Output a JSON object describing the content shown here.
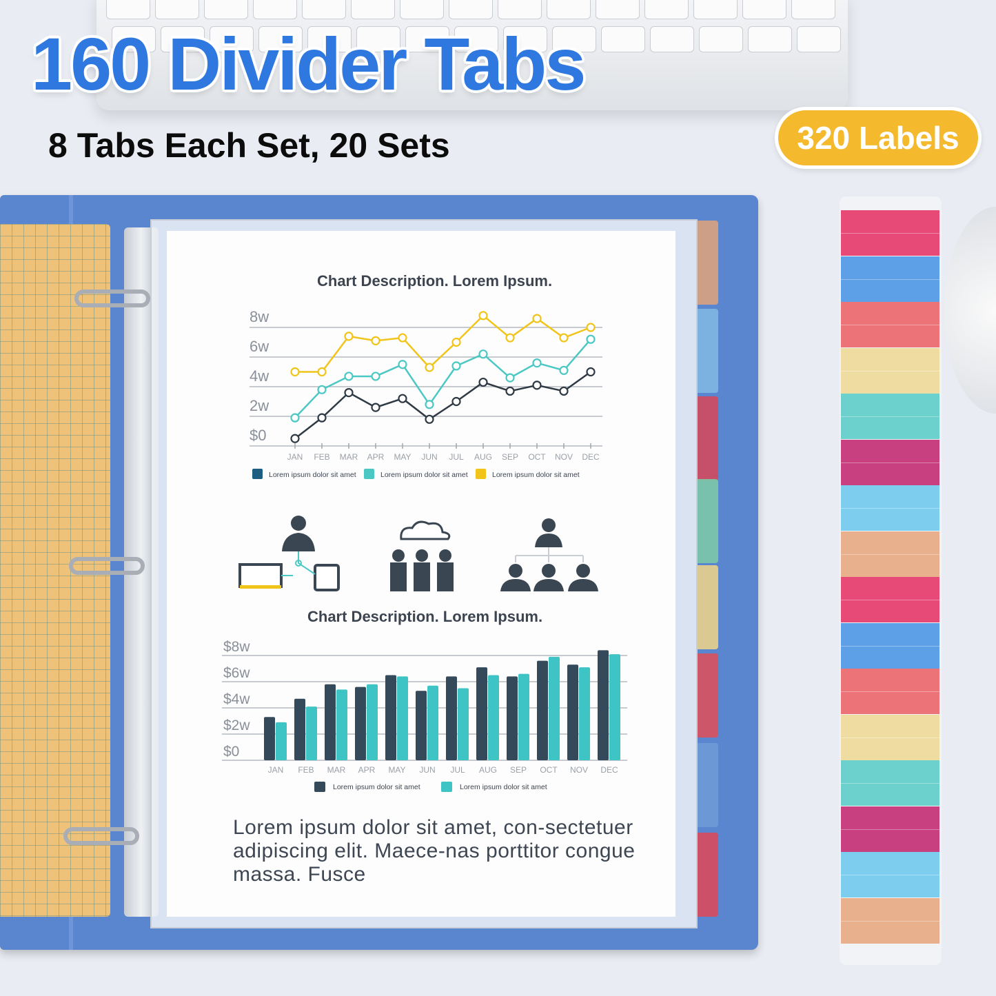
{
  "headline": "160 Divider Tabs",
  "subheadline": "8 Tabs Each Set, 20 Sets",
  "badge": "320 Labels",
  "colors": {
    "headline": "#2f78e0",
    "badge": "#f4b92c",
    "binder": "#5a86cf",
    "divider_tabs": [
      "#d9a27e",
      "#7fb7e0",
      "#d24a5e",
      "#7cc8a8",
      "#e8d08a",
      "#d9525c",
      "#6f9ad6",
      "#d84a5c"
    ],
    "label_strip": [
      "#e84a78",
      "#5ea0e8",
      "#ec7478",
      "#efdca0",
      "#6cd0cc",
      "#c8407f",
      "#7ccdee",
      "#e8b08c",
      "#e84a78",
      "#5ea0e8",
      "#ec7478",
      "#efdca0",
      "#6cd0cc",
      "#c8407f",
      "#7ccdee",
      "#e8b08c"
    ]
  },
  "document": {
    "paragraph": "Lorem ipsum dolor sit amet, con-sectetuer adipiscing elit. Maece-nas porttitor congue massa. Fusce",
    "icons": [
      "person-with-devices-icon",
      "cloud-team-icon",
      "org-chart-icon"
    ]
  },
  "chart_data": [
    {
      "type": "line",
      "title": "Chart Description. Lorem Ipsum.",
      "categories": [
        "JAN",
        "FEB",
        "MAR",
        "APR",
        "MAY",
        "JUN",
        "JUL",
        "AUG",
        "SEP",
        "OCT",
        "NOV",
        "DEC"
      ],
      "ytick_labels": [
        "$0",
        "2w",
        "4w",
        "6w",
        "8w"
      ],
      "yticks": [
        0,
        2,
        4,
        6,
        8
      ],
      "ylim": [
        0,
        9
      ],
      "grid": true,
      "legend": "bottom",
      "series": [
        {
          "name": "Lorem ipsum dolor sit amet",
          "color": "#2f3a44",
          "legend_color": "#1f5d80",
          "values": [
            0.5,
            1.9,
            3.6,
            2.6,
            3.2,
            1.8,
            3.0,
            4.3,
            3.7,
            4.1,
            3.7,
            5.0
          ]
        },
        {
          "name": "Lorem ipsum dolor sit amet",
          "color": "#4cc8c4",
          "legend_color": "#4cc8c4",
          "values": [
            1.9,
            3.8,
            4.7,
            4.7,
            5.5,
            2.8,
            5.4,
            6.2,
            4.6,
            5.6,
            5.1,
            7.2
          ]
        },
        {
          "name": "Lorem ipsum dolor sit amet",
          "color": "#f0c419",
          "legend_color": "#f0c419",
          "values": [
            5.0,
            5.0,
            7.4,
            7.1,
            7.3,
            5.3,
            7.0,
            8.8,
            7.3,
            8.6,
            7.3,
            8.0
          ]
        }
      ]
    },
    {
      "type": "bar",
      "title": "Chart Description. Lorem Ipsum.",
      "categories": [
        "JAN",
        "FEB",
        "MAR",
        "APR",
        "MAY",
        "JUN",
        "JUL",
        "AUG",
        "SEP",
        "OCT",
        "NOV",
        "DEC"
      ],
      "ytick_labels": [
        "$0",
        "$2w",
        "$4w",
        "$6w",
        "$8w"
      ],
      "yticks": [
        0,
        2,
        4,
        6,
        8
      ],
      "ylim": [
        0,
        8.6
      ],
      "grid": true,
      "legend": "bottom",
      "series": [
        {
          "name": "Lorem ipsum dolor sit amet",
          "color": "#34495a",
          "values": [
            3.3,
            4.7,
            5.8,
            5.6,
            6.5,
            5.3,
            6.4,
            7.1,
            6.4,
            7.6,
            7.3,
            8.4
          ]
        },
        {
          "name": "Lorem ipsum dolor sit amet",
          "color": "#3fc4c6",
          "values": [
            2.9,
            4.1,
            5.4,
            5.8,
            6.4,
            5.7,
            5.5,
            6.5,
            6.6,
            7.9,
            7.1,
            8.1
          ]
        }
      ]
    }
  ]
}
